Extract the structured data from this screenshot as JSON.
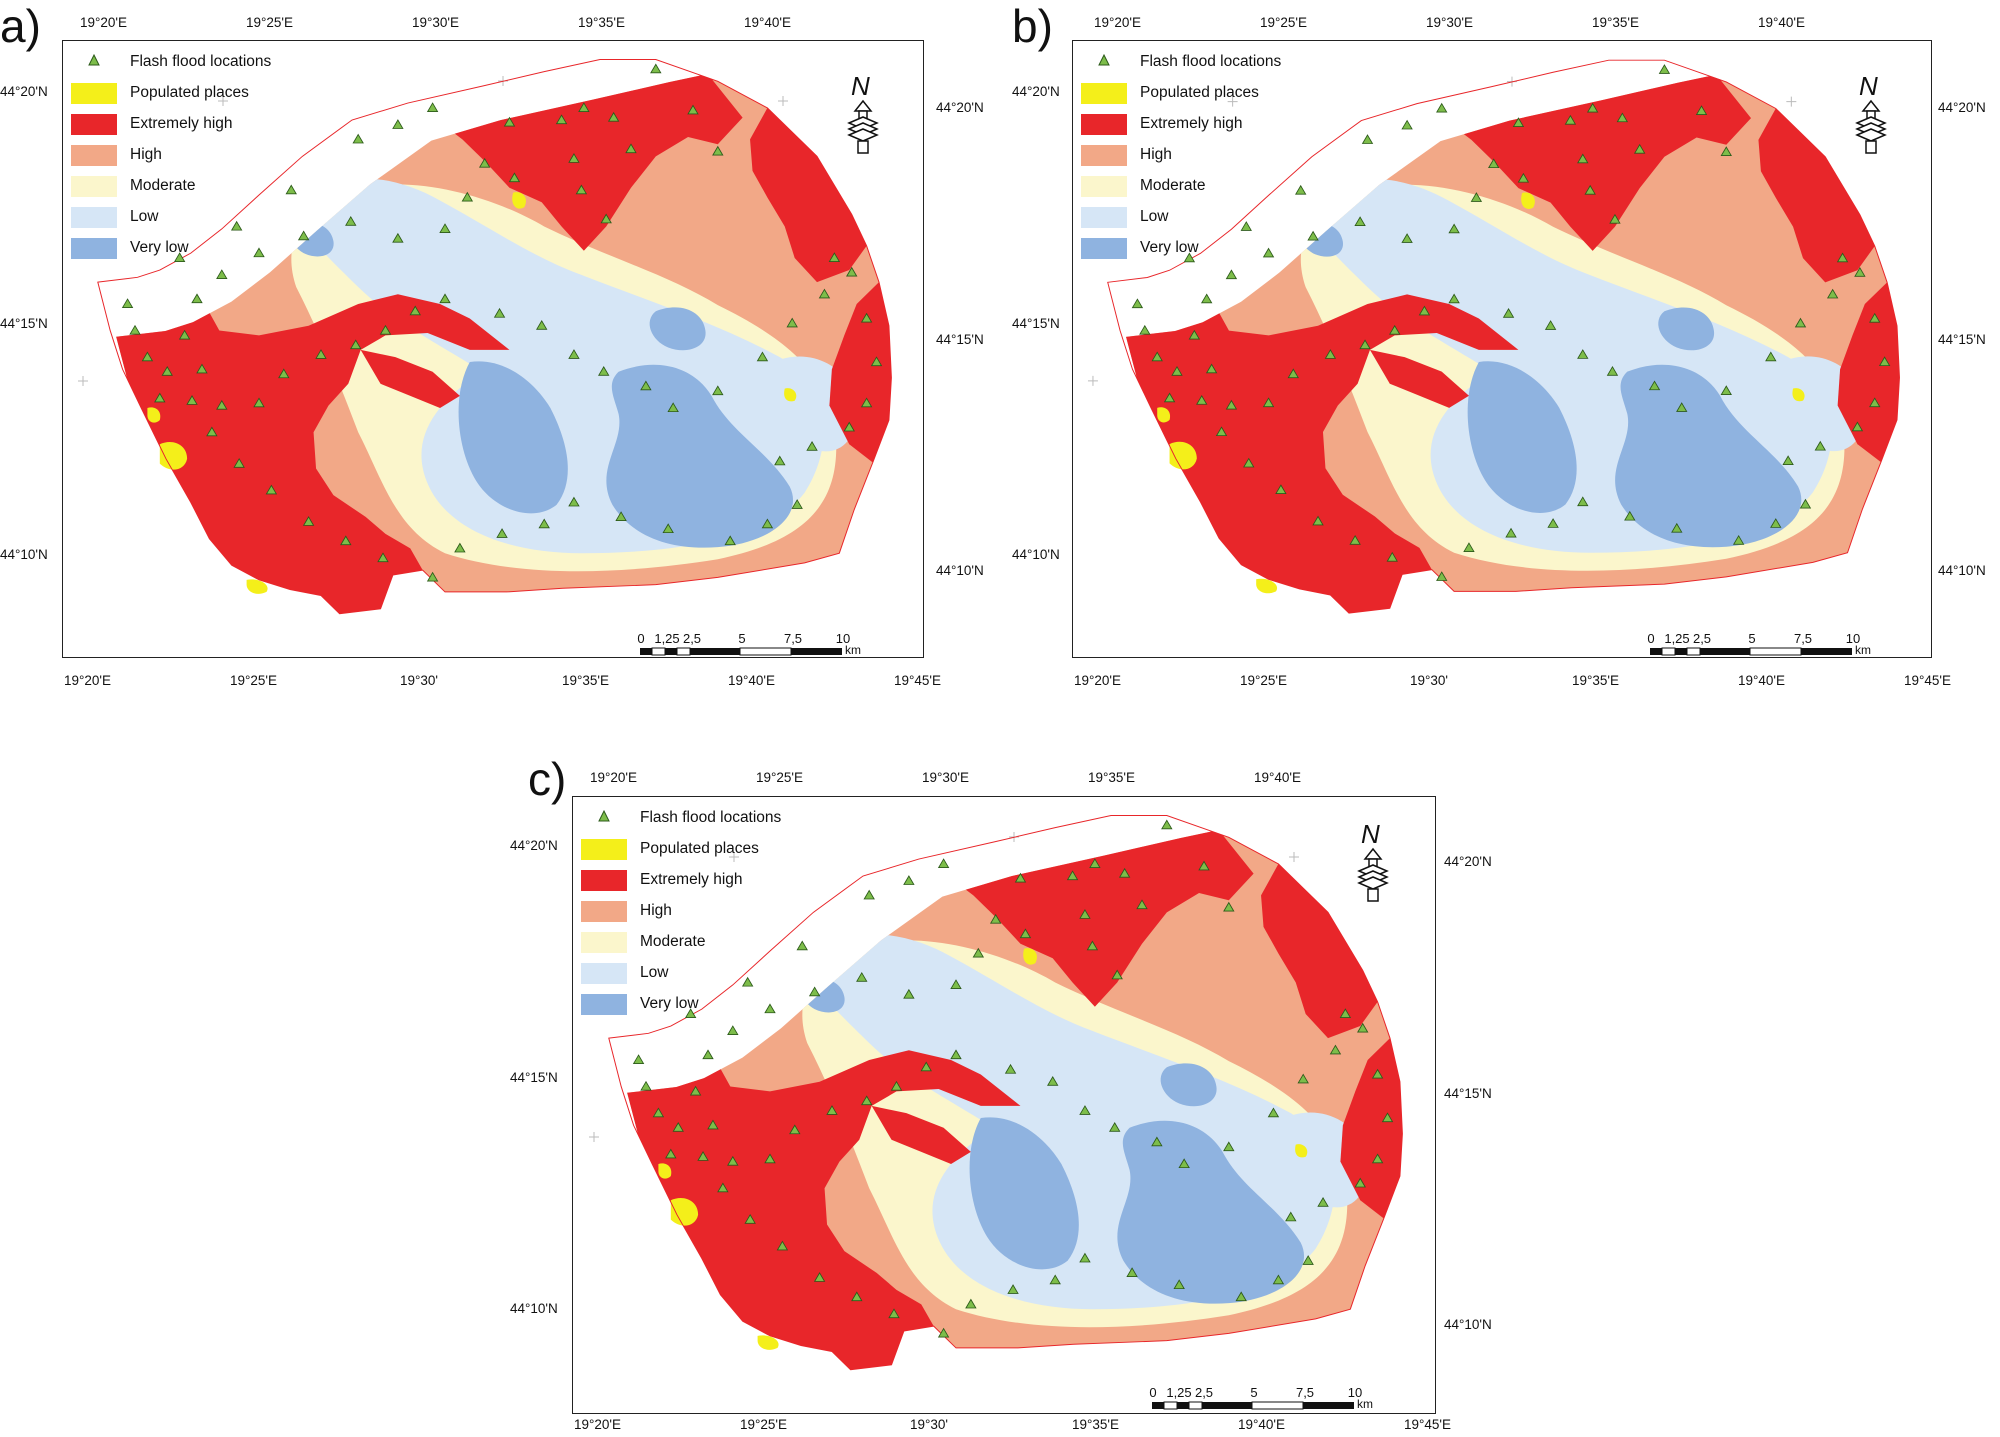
{
  "panels": [
    {
      "letter": "a)"
    },
    {
      "letter": "b)"
    },
    {
      "letter": "c)"
    }
  ],
  "axes": {
    "top_longitudes": [
      "19°20'E",
      "19°25'E",
      "19°30'E",
      "19°35'E",
      "19°40'E"
    ],
    "bottom_longitudes": [
      "19°20'E",
      "19°25'E",
      "19°30'",
      "19°35'E",
      "19°40'E",
      "19°45'E"
    ],
    "left_latitudes": [
      "44°20'N",
      "44°15'N",
      "44°10'N"
    ],
    "right_latitudes": [
      "44°20'N",
      "44°15'N",
      "44°10'N"
    ]
  },
  "legend": {
    "flash_flood": "Flash flood locations",
    "populated": "Populated places",
    "extremely_high": "Extremely high",
    "high": "High",
    "moderate": "Moderate",
    "low": "Low",
    "very_low": "Very low"
  },
  "north_arrow": {
    "letter": "N",
    "icon": "north-arrow-icon"
  },
  "scale_bar": {
    "labels": [
      "0",
      "1,25",
      "2,5",
      "5",
      "7,5",
      "10"
    ],
    "unit": "km"
  },
  "colors": {
    "flash_flood": "#7dbd4a",
    "populated": "#f4ef1a",
    "extremely_high": "#e8262a",
    "high": "#f2a887",
    "moderate": "#fbf6cc",
    "low": "#d6e6f6",
    "very_low": "#8fb3e0"
  }
}
